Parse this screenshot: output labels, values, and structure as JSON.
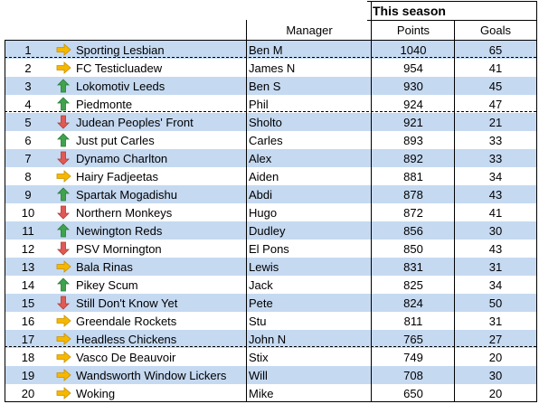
{
  "header": {
    "group_title": "This season",
    "manager": "Manager",
    "points": "Points",
    "goals": "Goals"
  },
  "colors": {
    "row_alt": "#c5d9f1",
    "arrow_up": "#3fa34d",
    "arrow_down": "#e05a55",
    "arrow_same": "#f5b800"
  },
  "rows": [
    {
      "rank": "1",
      "trend": "same",
      "team": "Sporting Lesbian",
      "manager": "Ben M",
      "points": "1040",
      "goals": "65"
    },
    {
      "rank": "2",
      "trend": "same",
      "team": "FC Testicluadew",
      "manager": "James N",
      "points": "954",
      "goals": "41"
    },
    {
      "rank": "3",
      "trend": "up",
      "team": "Lokomotiv Leeds",
      "manager": "Ben S",
      "points": "930",
      "goals": "45"
    },
    {
      "rank": "4",
      "trend": "up",
      "team": "Piedmonte",
      "manager": "Phil",
      "points": "924",
      "goals": "47"
    },
    {
      "rank": "5",
      "trend": "down",
      "team": "Judean Peoples' Front",
      "manager": "Sholto",
      "points": "921",
      "goals": "21"
    },
    {
      "rank": "6",
      "trend": "up",
      "team": "Just put Carles",
      "manager": "Carles",
      "points": "893",
      "goals": "33"
    },
    {
      "rank": "7",
      "trend": "down",
      "team": "Dynamo Charlton",
      "manager": "Alex",
      "points": "892",
      "goals": "33"
    },
    {
      "rank": "8",
      "trend": "same",
      "team": "Hairy Fadjeetas",
      "manager": "Aiden",
      "points": "881",
      "goals": "34"
    },
    {
      "rank": "9",
      "trend": "up",
      "team": "Spartak Mogadishu",
      "manager": "Abdi",
      "points": "878",
      "goals": "43"
    },
    {
      "rank": "10",
      "trend": "down",
      "team": "Northern Monkeys",
      "manager": "Hugo",
      "points": "872",
      "goals": "41"
    },
    {
      "rank": "11",
      "trend": "up",
      "team": "Newington Reds",
      "manager": "Dudley",
      "points": "856",
      "goals": "30"
    },
    {
      "rank": "12",
      "trend": "down",
      "team": "PSV Mornington",
      "manager": "El Pons",
      "points": "850",
      "goals": "43"
    },
    {
      "rank": "13",
      "trend": "same",
      "team": "Bala Rinas",
      "manager": "Lewis",
      "points": "831",
      "goals": "31"
    },
    {
      "rank": "14",
      "trend": "up",
      "team": "Pikey Scum",
      "manager": "Jack",
      "points": "825",
      "goals": "34"
    },
    {
      "rank": "15",
      "trend": "down",
      "team": "Still Don't Know Yet",
      "manager": "Pete",
      "points": "824",
      "goals": "50"
    },
    {
      "rank": "16",
      "trend": "same",
      "team": "Greendale Rockets",
      "manager": "Stu",
      "points": "811",
      "goals": "31"
    },
    {
      "rank": "17",
      "trend": "same",
      "team": "Headless Chickens",
      "manager": "John N",
      "points": "765",
      "goals": "27"
    },
    {
      "rank": "18",
      "trend": "same",
      "team": "Vasco De Beauvoir",
      "manager": "Stix",
      "points": "749",
      "goals": "20"
    },
    {
      "rank": "19",
      "trend": "same",
      "team": "Wandsworth Window Lickers",
      "manager": "Will",
      "points": "708",
      "goals": "30"
    },
    {
      "rank": "20",
      "trend": "same",
      "team": "Woking",
      "manager": "Mike",
      "points": "650",
      "goals": "20"
    }
  ]
}
